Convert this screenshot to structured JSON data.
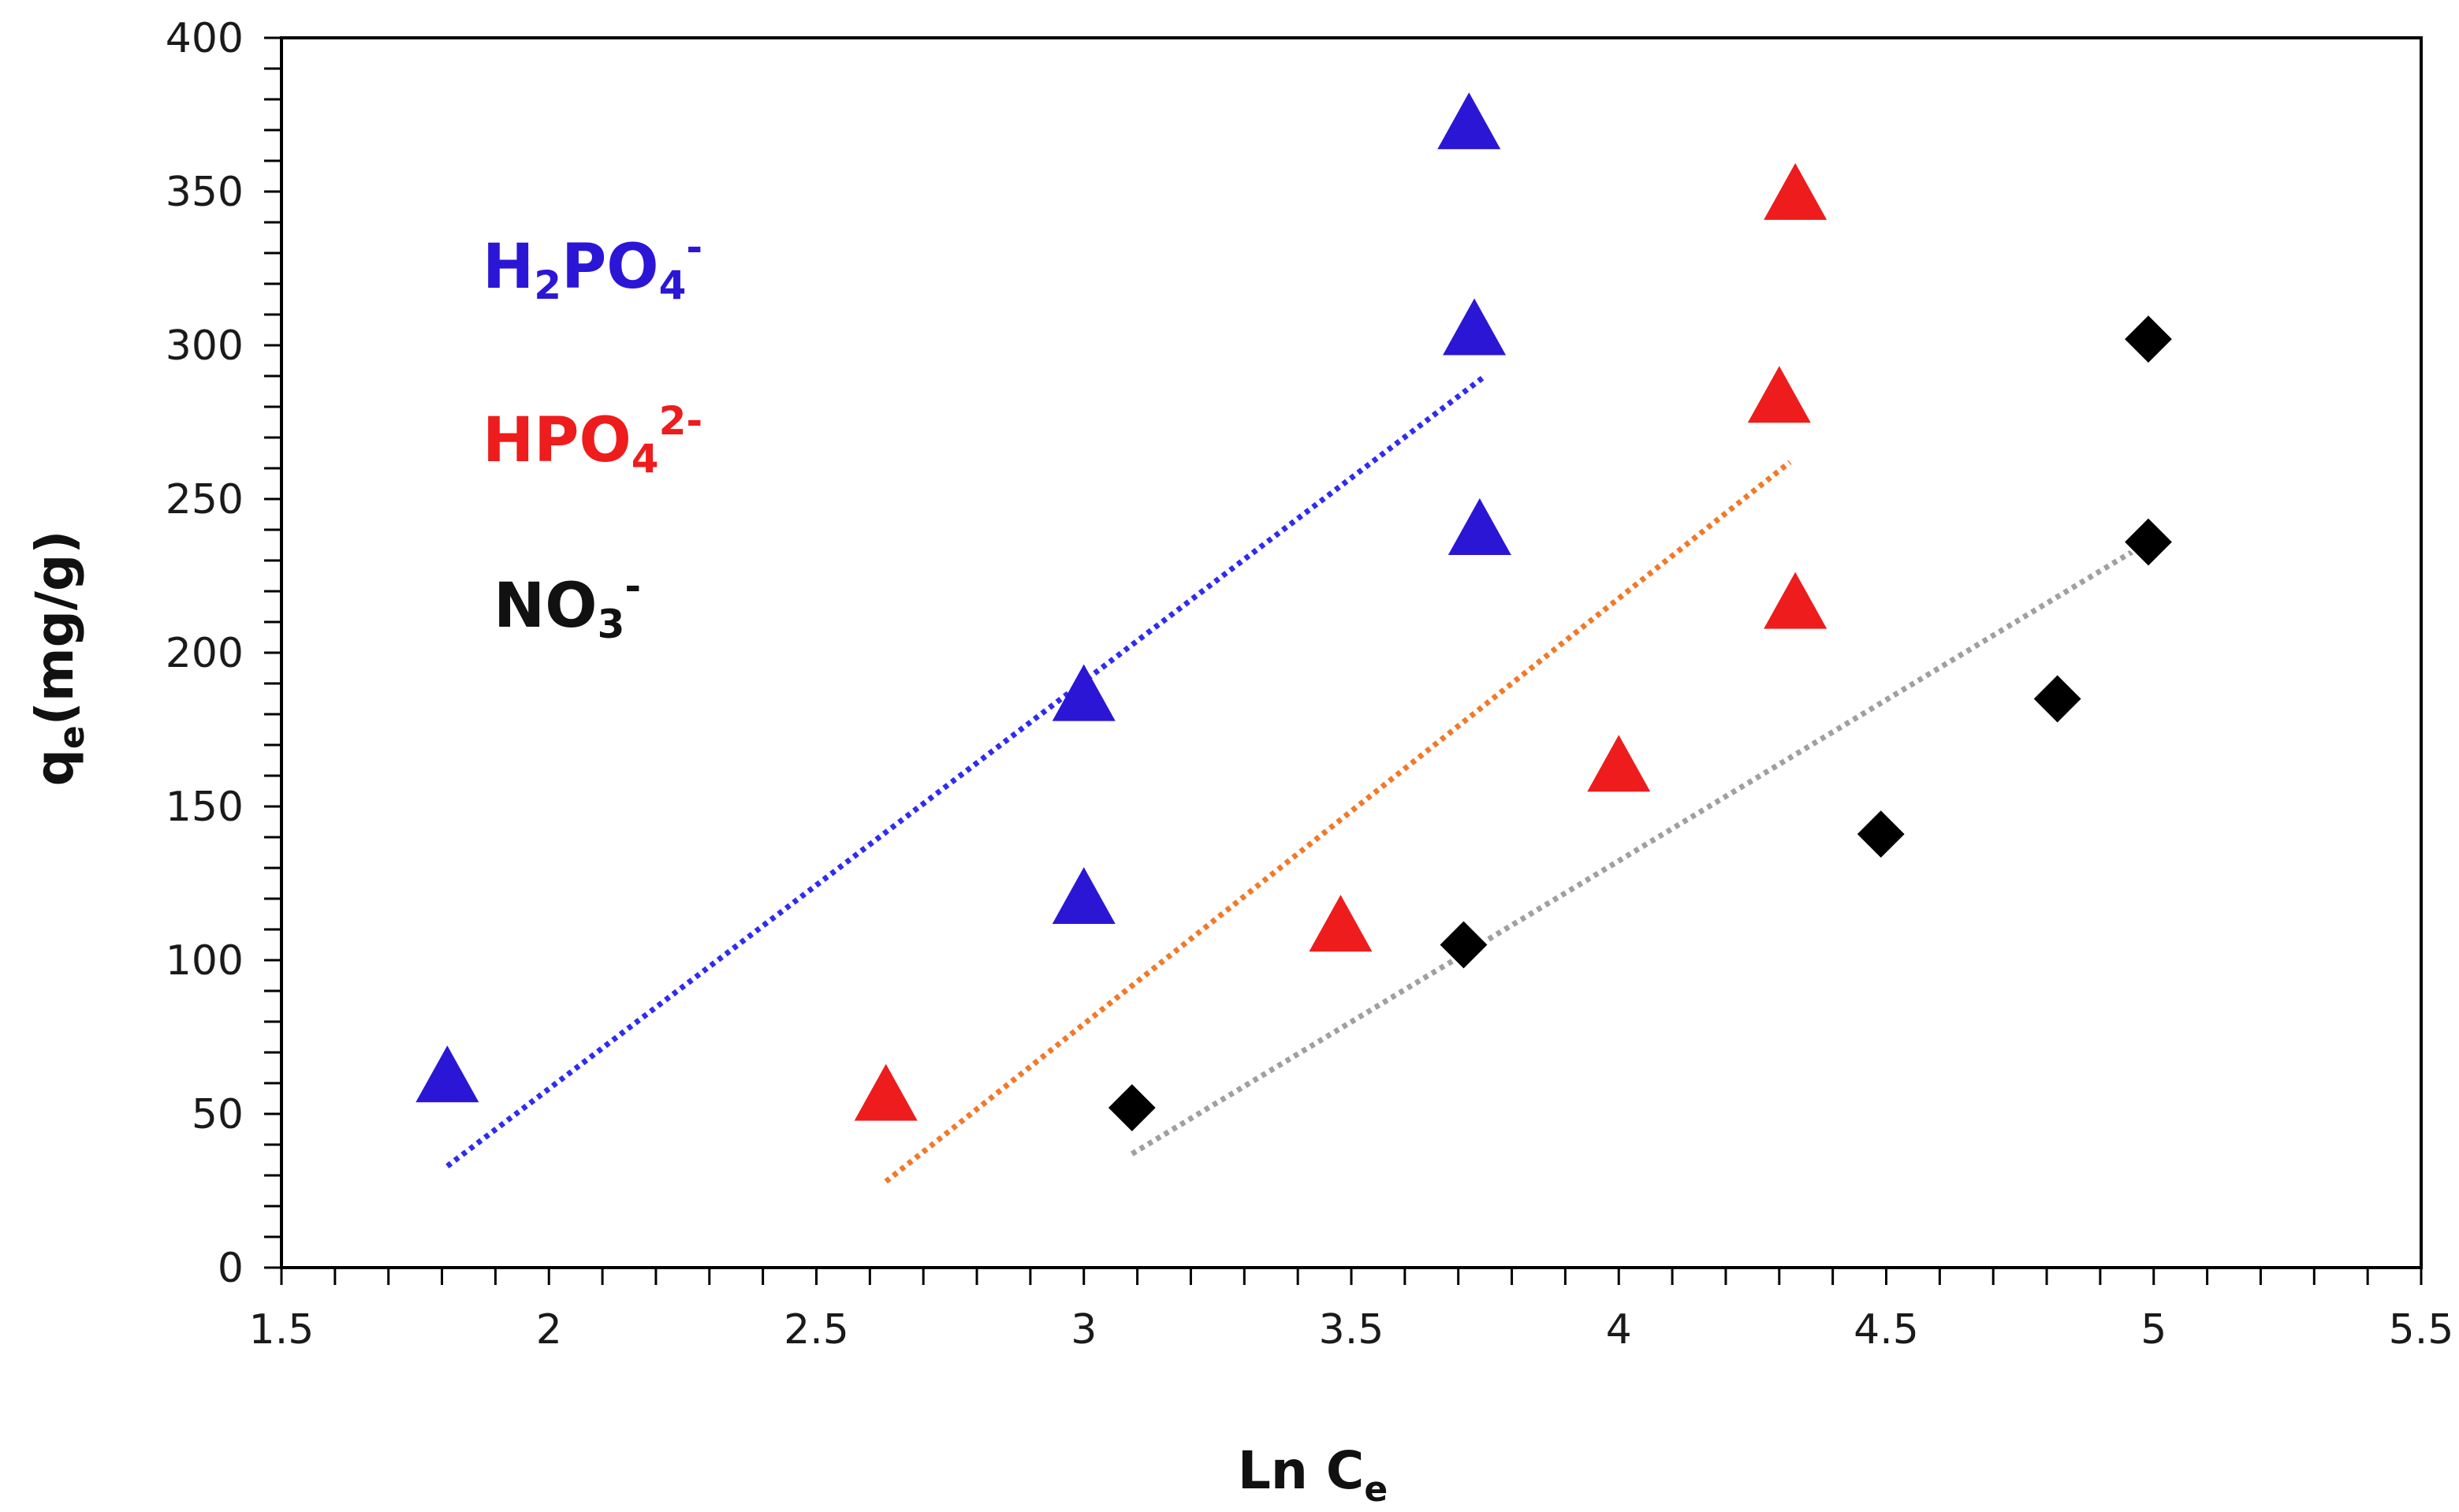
{
  "chart_data": {
    "type": "scatter",
    "title": "",
    "xlabel": {
      "main": "Ln C",
      "sub": "e"
    },
    "ylabel": {
      "main": "q",
      "sub": "e",
      "rest": "(mg/g)"
    },
    "xlim": [
      1.5,
      5.5
    ],
    "ylim": [
      0,
      400
    ],
    "x_ticks": [
      "1.5",
      "2",
      "2.5",
      "3",
      "3.5",
      "4",
      "4.5",
      "5",
      "5.5"
    ],
    "y_ticks": [
      "0",
      "50",
      "100",
      "150",
      "200",
      "250",
      "300",
      "350",
      "400"
    ],
    "x_minor_step": 0.1,
    "y_minor_step": 10,
    "grid": false,
    "series": [
      {
        "name": "H2PO4-",
        "label": {
          "main": "H",
          "sub": "2",
          "mid": "PO",
          "sub2": "4",
          "sup": "-"
        },
        "marker": "triangle",
        "color": "#2b16d6",
        "trendline_color": "#2f2cf0",
        "points": [
          [
            1.81,
            62
          ],
          [
            3.0,
            186
          ],
          [
            3.0,
            120
          ],
          [
            3.72,
            372
          ],
          [
            3.73,
            305
          ],
          [
            3.74,
            240
          ]
        ],
        "trendline": [
          [
            1.81,
            33
          ],
          [
            3.75,
            290
          ]
        ]
      },
      {
        "name": "HPO4 2-",
        "label": {
          "main": "HPO",
          "sub": "4",
          "sup": "2-"
        },
        "marker": "triangle",
        "color": "#ee1c1c",
        "trendline_color": "#f07a2a",
        "points": [
          [
            2.63,
            56
          ],
          [
            3.48,
            111
          ],
          [
            4.0,
            163
          ],
          [
            4.3,
            283
          ],
          [
            4.33,
            349
          ],
          [
            4.33,
            216
          ]
        ],
        "trendline": [
          [
            2.63,
            28
          ],
          [
            4.32,
            262
          ]
        ]
      },
      {
        "name": "NO3-",
        "label": {
          "main": "NO",
          "sub": "3",
          "sup": "-"
        },
        "marker": "diamond",
        "color": "#000000",
        "trendline_color": "#a0a0a0",
        "points": [
          [
            3.09,
            52
          ],
          [
            3.71,
            105
          ],
          [
            4.49,
            141
          ],
          [
            4.82,
            185
          ],
          [
            4.99,
            302
          ],
          [
            4.99,
            236
          ]
        ],
        "trendline": [
          [
            3.09,
            37
          ],
          [
            4.99,
            236
          ]
        ]
      }
    ]
  }
}
